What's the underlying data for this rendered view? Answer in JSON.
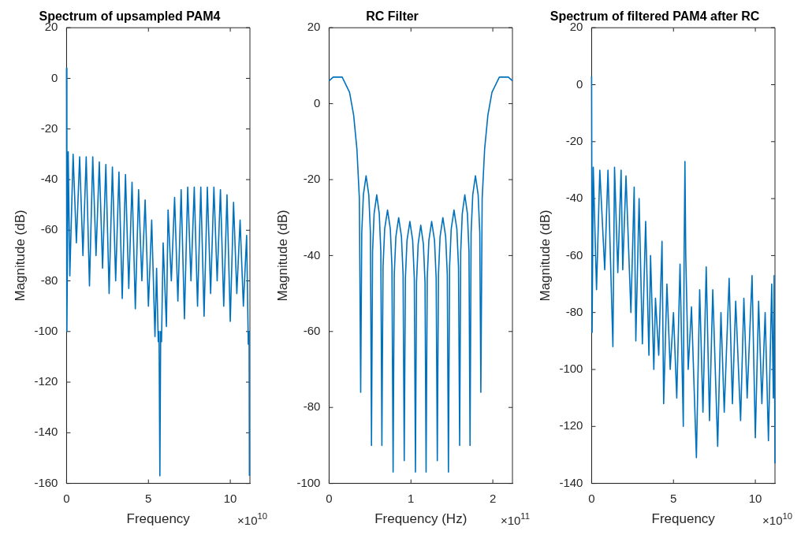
{
  "chart_data": [
    {
      "type": "line",
      "title": "Spectrum of upsampled PAM4",
      "xlabel": "Frequency",
      "ylabel": "Magnitude (dB)",
      "annotations": [
        "×10$^{10}$"
      ],
      "xlim": [
        0,
        11.2
      ],
      "ylim": [
        -160,
        20
      ],
      "xticks": [
        0,
        5,
        10
      ],
      "yticks": [
        -160,
        -140,
        -120,
        -100,
        -80,
        -60,
        -40,
        -20,
        0,
        20
      ],
      "x": [
        0,
        0.02,
        0.1,
        0.2,
        0.4,
        0.6,
        0.8,
        1,
        1.2,
        1.4,
        1.6,
        1.8,
        2,
        2.2,
        2.4,
        2.6,
        2.8,
        3,
        3.2,
        3.4,
        3.6,
        3.8,
        4,
        4.2,
        4.4,
        4.6,
        4.8,
        5,
        5.2,
        5.4,
        5.5,
        5.6,
        5.65,
        5.7,
        5.75,
        5.8,
        5.9,
        6.1,
        6.2,
        6.4,
        6.6,
        6.8,
        7,
        7.2,
        7.4,
        7.6,
        7.8,
        8,
        8.2,
        8.4,
        8.6,
        8.8,
        9,
        9.2,
        9.4,
        9.6,
        9.8,
        10,
        10.2,
        10.4,
        10.6,
        10.8,
        11,
        11.1,
        11.15,
        11.17
      ],
      "series": [
        {
          "color": "#0072bd",
          "values": [
            4,
            -100,
            -29,
            -78,
            -30,
            -65,
            -31,
            -70,
            -31,
            -82,
            -31,
            -70,
            -33,
            -75,
            -34,
            -85,
            -35,
            -80,
            -37,
            -87,
            -38,
            -83,
            -41,
            -91,
            -44,
            -80,
            -48,
            -90,
            -56,
            -102,
            -75,
            -104,
            -100,
            -157,
            -100,
            -104,
            -65,
            -98,
            -52,
            -80,
            -47,
            -88,
            -44,
            -95,
            -43,
            -80,
            -43,
            -90,
            -43,
            -94,
            -43,
            -85,
            -43,
            -80,
            -44,
            -90,
            -46,
            -96,
            -49,
            -85,
            -56,
            -90,
            -62,
            -105,
            -100,
            -157
          ]
        }
      ]
    },
    {
      "type": "line",
      "title": "RC Filter",
      "xlabel": "Frequency (Hz)",
      "ylabel": "Magnitude (dB)",
      "annotations": [
        "×10$^{11}$"
      ],
      "xlim": [
        0,
        2.24
      ],
      "ylim": [
        -100,
        20
      ],
      "xticks": [
        0,
        1,
        2
      ],
      "yticks": [
        -100,
        -80,
        -60,
        -40,
        -20,
        0,
        20
      ],
      "x": [
        0,
        0.05,
        0.16,
        0.25,
        0.3,
        0.34,
        0.37,
        0.386,
        0.399,
        0.419,
        0.452,
        0.485,
        0.505,
        0.518,
        0.531,
        0.55,
        0.582,
        0.613,
        0.632,
        0.645,
        0.659,
        0.679,
        0.714,
        0.748,
        0.768,
        0.782,
        0.796,
        0.816,
        0.85,
        0.884,
        0.904,
        0.918,
        0.932,
        0.952,
        0.987,
        1.021,
        1.041,
        1.055,
        1.068,
        1.088,
        1.12,
        1.152,
        1.172,
        1.185,
        1.199,
        1.219,
        1.253,
        1.288,
        1.308,
        1.322,
        1.336,
        1.356,
        1.39,
        1.424,
        1.444,
        1.458,
        1.472,
        1.492,
        1.526,
        1.561,
        1.581,
        1.595,
        1.608,
        1.627,
        1.658,
        1.69,
        1.709,
        1.722,
        1.735,
        1.755,
        1.788,
        1.821,
        1.841,
        1.854,
        1.87,
        1.9,
        1.94,
        1.99,
        2.08,
        2.19,
        2.24
      ],
      "series": [
        {
          "color": "#0072bd",
          "values": [
            6,
            7,
            7,
            3,
            -3,
            -12,
            -25,
            -76,
            -34,
            -24,
            -19,
            -24,
            -34,
            -90,
            -39,
            -29,
            -24,
            -29,
            -39,
            -90,
            -43,
            -33,
            -28,
            -33,
            -43,
            -97,
            -45,
            -35,
            -30,
            -35,
            -45,
            -94,
            -46,
            -36,
            -31,
            -36,
            -46,
            -97,
            -47,
            -37,
            -32,
            -37,
            -47,
            -97,
            -46,
            -36,
            -31,
            -36,
            -46,
            -94,
            -45,
            -35,
            -30,
            -35,
            -45,
            -97,
            -43,
            -33,
            -28,
            -33,
            -43,
            -90,
            -39,
            -29,
            -24,
            -29,
            -39,
            -90,
            -34,
            -24,
            -19,
            -24,
            -34,
            -76,
            -25,
            -12,
            -3,
            3,
            7,
            7,
            6
          ]
        }
      ]
    },
    {
      "type": "line",
      "title": "Spectrum of filtered PAM4 after RC",
      "xlabel": "Frequency",
      "ylabel": "Magnitude (dB)",
      "annotations": [
        "×10$^{10}$"
      ],
      "xlim": [
        0,
        11.2
      ],
      "ylim": [
        -140,
        20
      ],
      "xticks": [
        0,
        5,
        10
      ],
      "yticks": [
        -140,
        -120,
        -100,
        -80,
        -60,
        -40,
        -20,
        0,
        20
      ],
      "x": [
        0,
        0.03,
        0.1,
        0.3,
        0.5,
        0.8,
        1,
        1.3,
        1.4,
        1.6,
        1.8,
        1.9,
        2.1,
        2.4,
        2.6,
        2.7,
        2.9,
        3.1,
        3.3,
        3.5,
        3.6,
        3.8,
        3.9,
        4.1,
        4.3,
        4.4,
        4.6,
        4.8,
        5,
        5.2,
        5.4,
        5.6,
        5.65,
        5.7,
        5.75,
        5.9,
        6.1,
        6.4,
        6.6,
        6.8,
        7,
        7.2,
        7.4,
        7.7,
        7.9,
        8.1,
        8.4,
        8.6,
        8.8,
        9.1,
        9.3,
        9.5,
        9.8,
        10,
        10.2,
        10.4,
        10.6,
        10.8,
        11,
        11.1,
        11.15,
        11.2
      ],
      "series": [
        {
          "color": "#0072bd",
          "values": [
            3,
            -87,
            -29,
            -72,
            -30,
            -65,
            -30,
            -92,
            -29,
            -66,
            -30,
            -65,
            -32,
            -80,
            -36,
            -90,
            -40,
            -91,
            -48,
            -95,
            -60,
            -100,
            -75,
            -95,
            -55,
            -112,
            -70,
            -100,
            -80,
            -110,
            -63,
            -120,
            -60,
            -27,
            -60,
            -100,
            -78,
            -131,
            -72,
            -115,
            -64,
            -118,
            -72,
            -127,
            -80,
            -115,
            -68,
            -112,
            -76,
            -118,
            -75,
            -110,
            -67,
            -124,
            -76,
            -112,
            -80,
            -125,
            -70,
            -110,
            -67,
            -133
          ]
        }
      ]
    }
  ]
}
